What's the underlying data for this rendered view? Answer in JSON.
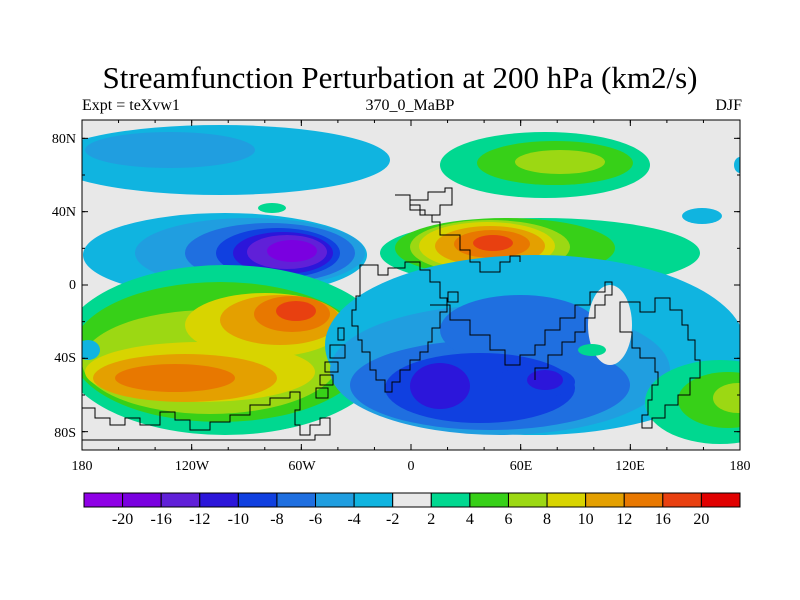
{
  "title": "Streamfunction Perturbation at 200 hPa (km2/s)",
  "subtitle_left": "Expt = teXvw1",
  "subtitle_center": "370_0_MaBP",
  "subtitle_right": "DJF",
  "lat_ticks": [
    "80N",
    "40N",
    "0",
    "40S",
    "80S"
  ],
  "lon_ticks": [
    "180",
    "120W",
    "60W",
    "0",
    "60E",
    "120E",
    "180"
  ],
  "colorbar": {
    "colors": [
      "#8f00e6",
      "#7a00e0",
      "#6020d8",
      "#2c16da",
      "#1040e0",
      "#1f6fe0",
      "#209ee0",
      "#10b4e0",
      "#e8e8e8",
      "#00d890",
      "#37d018",
      "#9cd813",
      "#d8d400",
      "#e4a000",
      "#e87800",
      "#e84010",
      "#e00000"
    ],
    "labels": [
      "-20",
      "-16",
      "-12",
      "-10",
      "-8",
      "-6",
      "-4",
      "-2",
      "2",
      "4",
      "6",
      "8",
      "10",
      "12",
      "16",
      "20"
    ]
  },
  "chart_data": {
    "type": "heatmap",
    "projection": "cylindrical-equidistant",
    "lon_range": [
      -180,
      180
    ],
    "lat_range": [
      -90,
      90
    ],
    "units": "km2/s",
    "contour_levels": [
      -20,
      -16,
      -12,
      -10,
      -8,
      -6,
      -4,
      -2,
      2,
      4,
      6,
      8,
      10,
      12,
      16,
      20
    ],
    "features": [
      {
        "lon": -160,
        "lat": 72,
        "value": -5
      },
      {
        "lon": 60,
        "lat": 70,
        "value": 8
      },
      {
        "lon": -130,
        "lat": 18,
        "value": -8
      },
      {
        "lon": -70,
        "lat": 18,
        "value": -16
      },
      {
        "lon": 40,
        "lat": 20,
        "value": 14
      },
      {
        "lon": 95,
        "lat": 20,
        "value": 6
      },
      {
        "lon": -140,
        "lat": -40,
        "value": 12
      },
      {
        "lon": -60,
        "lat": -12,
        "value": 16
      },
      {
        "lon": 50,
        "lat": -22,
        "value": -7
      },
      {
        "lon": 30,
        "lat": -55,
        "value": -12
      },
      {
        "lon": 65,
        "lat": -55,
        "value": -12
      },
      {
        "lon": 105,
        "lat": -28,
        "value": 1
      },
      {
        "lon": 160,
        "lat": -62,
        "value": 6
      }
    ]
  }
}
